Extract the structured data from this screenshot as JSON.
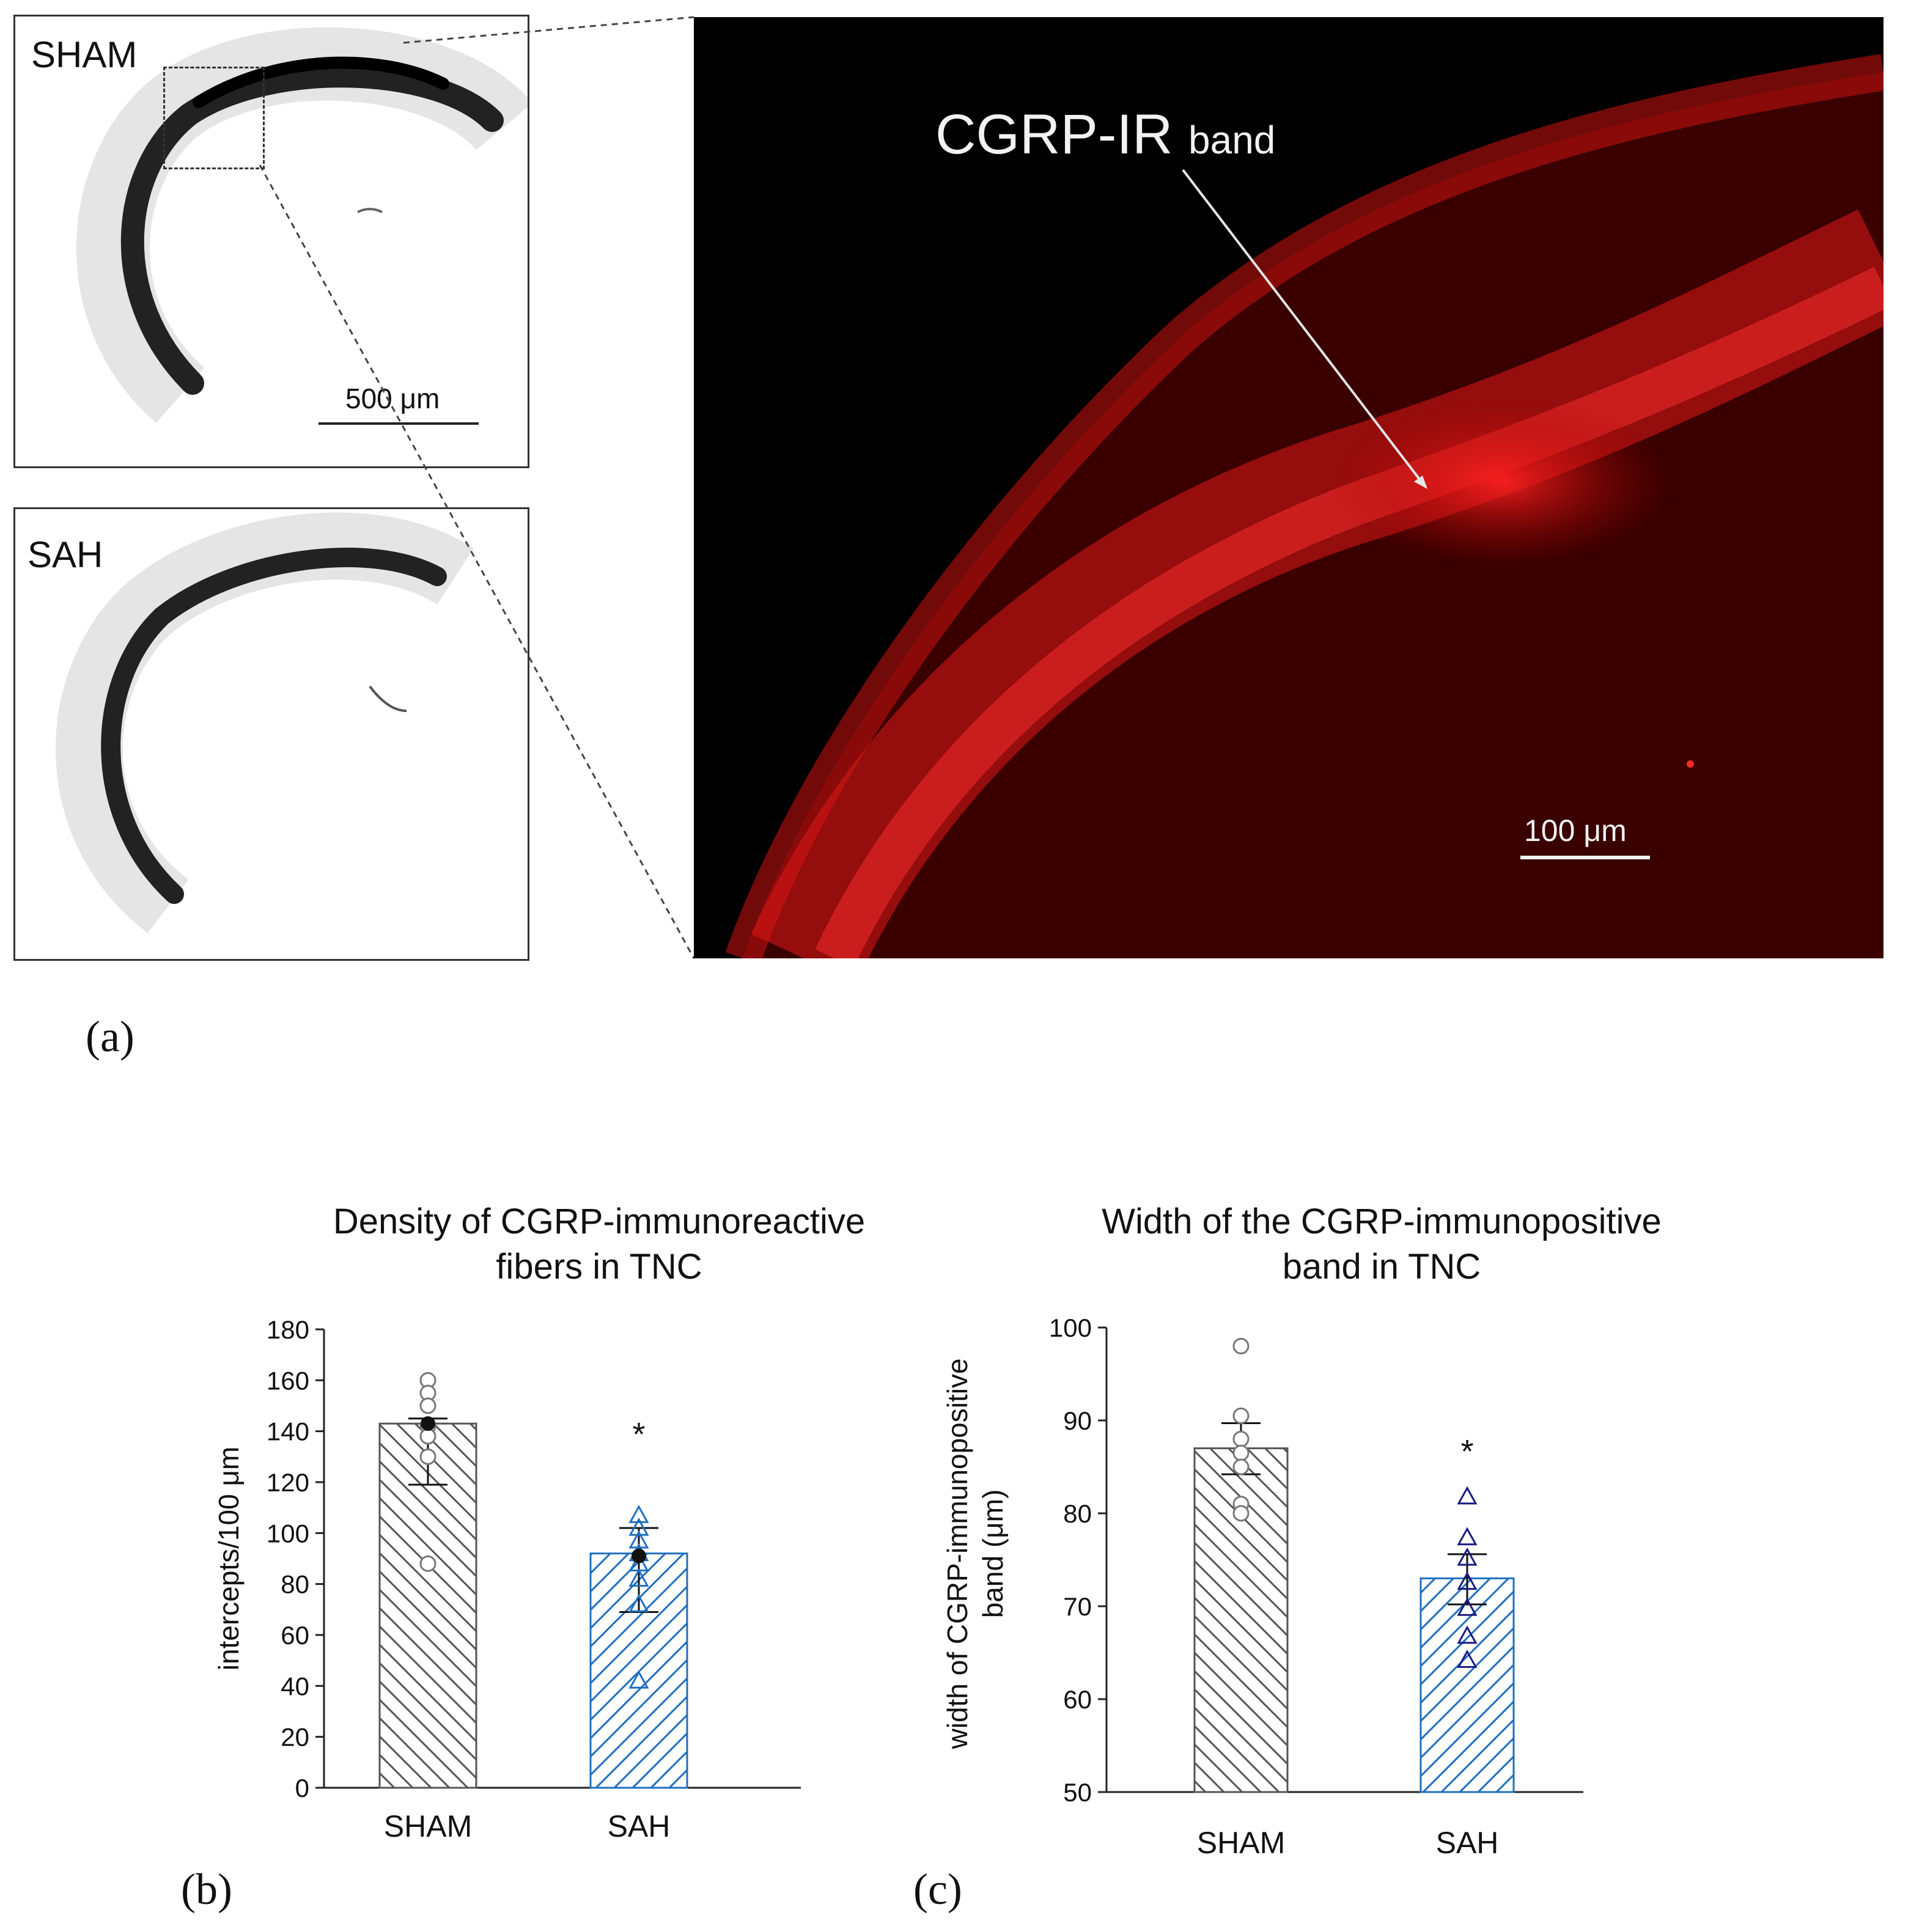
{
  "panel_a": {
    "letter": "(a)",
    "sham_label": "SHAM",
    "sah_label": "SAH",
    "scale_left": "500 μm",
    "annotation_main": "CGRP-IR",
    "annotation_sub": "band",
    "scale_right": "100 μm"
  },
  "panel_b_letter": "(b)",
  "panel_c_letter": "(c)",
  "colors": {
    "sham": "#555555",
    "sah": "#1f6fbf",
    "sah_c_markers": "#1a1a80",
    "fluor": "#e01010"
  },
  "chart_data": [
    {
      "type": "bar",
      "title": "Density of CGRP-immunoreactive fibers in TNC",
      "title_lines": [
        "Density of CGRP-immunoreactive",
        "fibers in TNC"
      ],
      "categories": [
        "SHAM",
        "SAH"
      ],
      "values": [
        143,
        92
      ],
      "error_upper": [
        145,
        102
      ],
      "error_lower": [
        119,
        69
      ],
      "points": [
        [
          160,
          155,
          150,
          142,
          138,
          130,
          88
        ],
        [
          107,
          102,
          97,
          92,
          88,
          82,
          72,
          42
        ]
      ],
      "median": [
        143,
        91
      ],
      "ylabel": "intercepts/100 μm",
      "ylim": [
        0,
        180
      ],
      "yticks": [
        0,
        20,
        40,
        60,
        80,
        100,
        120,
        140,
        160,
        180
      ],
      "significance": [
        "",
        "*"
      ]
    },
    {
      "type": "bar",
      "title": "Width of the CGRP-immunopositive band in TNC",
      "title_lines": [
        "Width of the CGRP-immunopositive",
        "band in TNC"
      ],
      "categories": [
        "SHAM",
        "SAH"
      ],
      "values": [
        87,
        73
      ],
      "error_upper": [
        89.7,
        75.6
      ],
      "error_lower": [
        84.2,
        70.2
      ],
      "points": [
        [
          98,
          90.5,
          88,
          86.5,
          85,
          81,
          80
        ],
        [
          81.8,
          77.4,
          75.2,
          72.6,
          69.8,
          66.8,
          64.2
        ]
      ],
      "ylabel_lines": [
        "width of CGRP-immunopositive",
        "band (μm)"
      ],
      "ylim": [
        50,
        100
      ],
      "yticks": [
        50,
        60,
        70,
        80,
        90,
        100
      ],
      "significance": [
        "",
        "*"
      ]
    }
  ]
}
